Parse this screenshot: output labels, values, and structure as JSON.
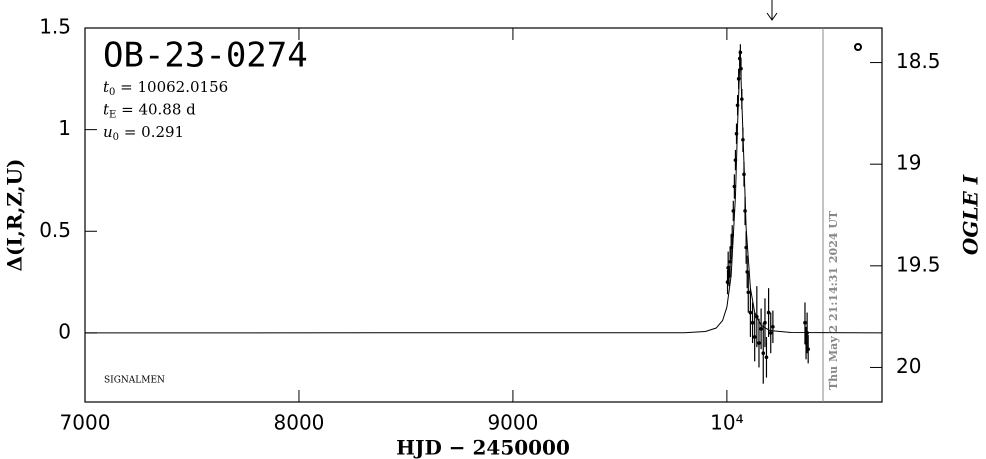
{
  "chart_data": {
    "type": "line",
    "title": "OB-23-0274",
    "params": [
      {
        "symbol": "t",
        "sub": "0",
        "text": " = 10062.0156"
      },
      {
        "symbol": "t",
        "sub": "E",
        "text": " = 40.88  d"
      },
      {
        "symbol": "u",
        "sub": "0",
        "text": " = 0.291"
      }
    ],
    "annotations": [
      "SIGNALMEN",
      "Thu May  2 21:14:31 2024 UT"
    ],
    "x_label": "HJD − 2450000",
    "y_label": "Δ(I,R,Z,U)",
    "y2_label": "OGLE I",
    "xlim": [
      7000,
      10725
    ],
    "xticks": [
      7000,
      8000,
      9000,
      {
        "value": 10000,
        "label": "10⁴"
      }
    ],
    "ylim": [
      -0.34,
      1.5
    ],
    "yticks": [
      0,
      0.5,
      1,
      1.5
    ],
    "y2lim": [
      20.17,
      18.33
    ],
    "y2ticks": [
      18.5,
      19,
      19.5,
      20
    ],
    "series": [
      {
        "marker": "line",
        "color": "#000000",
        "x": [
          7000,
          9500,
          9800,
          9900,
          9950,
          9980,
          10000,
          10020,
          10040,
          10050,
          10062,
          10075,
          10090,
          10110,
          10130,
          10160,
          10200,
          10300,
          10725
        ],
        "values": [
          0,
          0.001,
          0.001,
          0.007,
          0.024,
          0.061,
          0.127,
          0.282,
          0.671,
          1.025,
          1.374,
          0.986,
          0.516,
          0.22,
          0.101,
          0.037,
          0.012,
          0.002,
          0
        ]
      },
      {
        "marker": "points",
        "color": "#000000",
        "x": [
          10003,
          10006,
          10010,
          10015,
          10020,
          10025,
          10030,
          10035,
          10040,
          10045,
          10050,
          10055,
          10060,
          10063,
          10066,
          10070,
          10075,
          10080,
          10085,
          10090,
          10095,
          10100,
          10110,
          10120,
          10130,
          10140,
          10150,
          10160,
          10170,
          10178,
          10185,
          10195,
          10205,
          10215,
          10365,
          10370,
          10375,
          10380
        ],
        "values": [
          0.25,
          0.32,
          0.28,
          0.35,
          0.42,
          0.48,
          0.6,
          0.72,
          0.85,
          0.98,
          1.12,
          1.25,
          1.35,
          1.38,
          1.3,
          1.15,
          0.95,
          0.78,
          0.6,
          0.42,
          0.3,
          0.2,
          0.1,
          0.05,
          -0.02,
          0.08,
          -0.05,
          0.02,
          -0.1,
          0.05,
          -0.12,
          0.1,
          0,
          0.03,
          0.05,
          -0.05,
          0,
          -0.08
        ],
        "errors": [
          0.06,
          0.08,
          0.05,
          0.07,
          0.06,
          0.05,
          0.05,
          0.06,
          0.05,
          0.05,
          0.05,
          0.05,
          0.04,
          0.04,
          0.05,
          0.05,
          0.06,
          0.06,
          0.07,
          0.08,
          0.08,
          0.1,
          0.12,
          0.1,
          0.12,
          0.15,
          0.12,
          0.1,
          0.15,
          0.12,
          0.1,
          0.12,
          0.1,
          0.08,
          0.1,
          0.08,
          0.1,
          0.07
        ]
      }
    ]
  }
}
